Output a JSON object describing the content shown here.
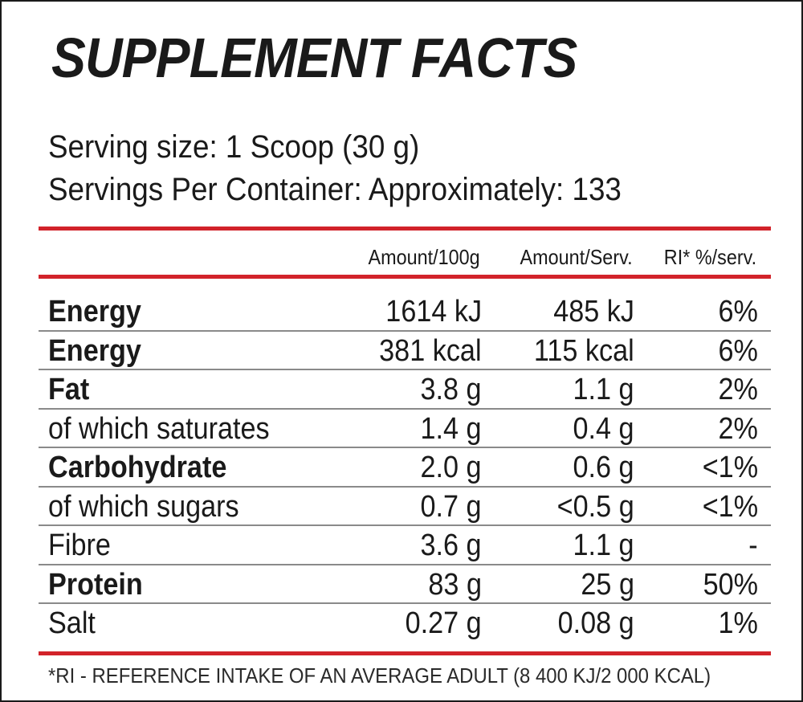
{
  "title": "SUPPLEMENT FACTS",
  "serving_size": "Serving size: 1 Scoop (30 g)",
  "servings_per_container": "Servings Per Container: Approximately: 133",
  "headers": [
    "Amount/100g",
    "Amount/Serv.",
    "RI* %/serv."
  ],
  "rows": [
    {
      "name": "Energy",
      "bold": true,
      "per100": "1614 kJ",
      "perServ": "485 kJ",
      "ri": "6%"
    },
    {
      "name": "Energy",
      "bold": true,
      "per100": "381 kcal",
      "perServ": "115 kcal",
      "ri": "6%"
    },
    {
      "name": "Fat",
      "bold": true,
      "per100": "3.8 g",
      "perServ": "1.1 g",
      "ri": "2%"
    },
    {
      "name": "of which saturates",
      "bold": false,
      "per100": "1.4 g",
      "perServ": "0.4 g",
      "ri": "2%"
    },
    {
      "name": "Carbohydrate",
      "bold": true,
      "per100": "2.0 g",
      "perServ": "0.6 g",
      "ri": "<1%"
    },
    {
      "name": "of which sugars",
      "bold": false,
      "per100": "0.7 g",
      "perServ": "<0.5 g",
      "ri": "<1%"
    },
    {
      "name": "Fibre",
      "bold": false,
      "per100": "3.6 g",
      "perServ": "1.1 g",
      "ri": "-"
    },
    {
      "name": "Protein",
      "bold": true,
      "per100": "83 g",
      "perServ": "25 g",
      "ri": "50%"
    },
    {
      "name": "Salt",
      "bold": false,
      "per100": "0.27 g",
      "perServ": "0.08 g",
      "ri": "1%"
    }
  ],
  "footnote": "*RI - REFERENCE INTAKE OF AN AVERAGE ADULT (8 400 KJ/2 000 KCAL)",
  "colors": {
    "accent_red": "#d2232a",
    "text": "#1a1a1a",
    "divider": "#8a8a8a"
  }
}
